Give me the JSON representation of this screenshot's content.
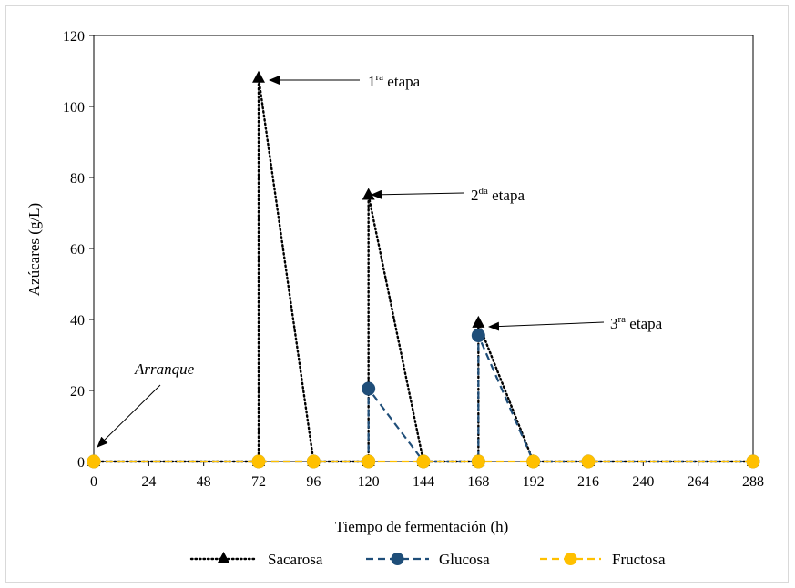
{
  "chart_data": {
    "type": "line",
    "xlabel": "Tiempo de fermentación (h)",
    "ylabel": "Azúcares (g/L)",
    "xlim": [
      0,
      288
    ],
    "ylim": [
      0,
      120
    ],
    "xticks": [
      0,
      24,
      48,
      72,
      96,
      120,
      144,
      168,
      192,
      216,
      240,
      264,
      288
    ],
    "yticks": [
      0,
      20,
      40,
      60,
      80,
      100,
      120
    ],
    "grid": false,
    "legend_position": "bottom",
    "series": [
      {
        "name": "Sacarosa",
        "color": "#000000",
        "marker": "triangle",
        "dash": "dotted",
        "points": [
          [
            0,
            0
          ],
          [
            72,
            0
          ],
          [
            72,
            108
          ],
          [
            96,
            0
          ],
          [
            120,
            0
          ],
          [
            120,
            75
          ],
          [
            144,
            0
          ],
          [
            168,
            0
          ],
          [
            168,
            39
          ],
          [
            192,
            0
          ],
          [
            216,
            0
          ],
          [
            288,
            0
          ]
        ]
      },
      {
        "name": "Glucosa",
        "color": "#1f4e79",
        "marker": "circle",
        "dash": "dashed",
        "points": [
          [
            0,
            0
          ],
          [
            72,
            0
          ],
          [
            96,
            0
          ],
          [
            120,
            0
          ],
          [
            120,
            20.5
          ],
          [
            144,
            0
          ],
          [
            168,
            0
          ],
          [
            168,
            35.5
          ],
          [
            192,
            0
          ],
          [
            216,
            0
          ],
          [
            288,
            0
          ]
        ]
      },
      {
        "name": "Fructosa",
        "color": "#ffc000",
        "marker": "circle",
        "dash": "dashed",
        "points": [
          [
            0,
            0
          ],
          [
            72,
            0
          ],
          [
            96,
            0
          ],
          [
            120,
            0
          ],
          [
            144,
            0
          ],
          [
            168,
            0
          ],
          [
            192,
            0
          ],
          [
            216,
            0
          ],
          [
            288,
            0
          ]
        ]
      }
    ],
    "annotations": [
      {
        "id": "arranque",
        "text": "Arranque",
        "italic": true,
        "x": 0,
        "y": 0
      },
      {
        "id": "etapa1",
        "base": "1",
        "sup": "ra",
        "rest": " etapa",
        "x": 72,
        "y": 108
      },
      {
        "id": "etapa2",
        "base": "2",
        "sup": "da",
        "rest": " etapa",
        "x": 120,
        "y": 75
      },
      {
        "id": "etapa3",
        "base": "3",
        "sup": "ra",
        "rest": " etapa",
        "x": 168,
        "y": 39
      }
    ]
  }
}
